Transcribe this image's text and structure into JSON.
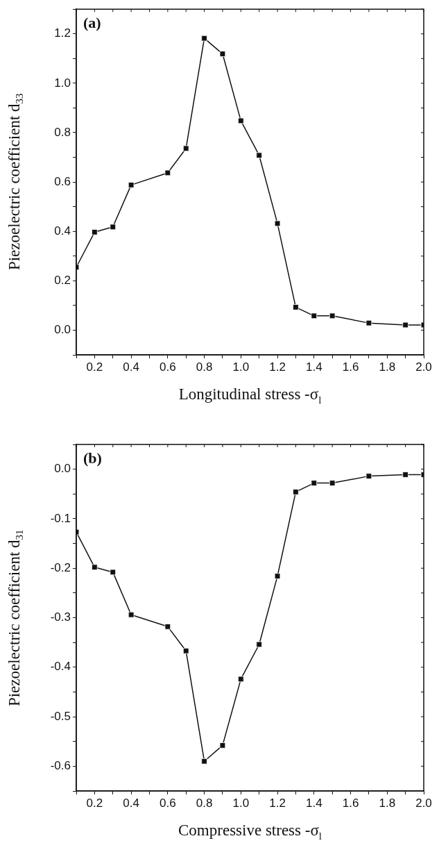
{
  "chart_data": [
    {
      "type": "line",
      "annotations": [
        "(a)"
      ],
      "xlabel": "Longitudinal stress -σ$_{l}$",
      "ylabel": "Piezoelectric coefficient d$_{33}$",
      "marker": "square",
      "line_style": "solid",
      "grid": false,
      "legend": false,
      "x": [
        0.1,
        0.2,
        0.3,
        0.4,
        0.6,
        0.7,
        0.8,
        0.9,
        1.0,
        1.1,
        1.2,
        1.3,
        1.4,
        1.5,
        1.7,
        1.9,
        2.0
      ],
      "series": [
        {
          "color": "#111111",
          "values": [
            0.255,
            0.397,
            0.418,
            0.588,
            0.637,
            0.736,
            1.182,
            1.119,
            0.848,
            0.708,
            0.432,
            0.093,
            0.058,
            0.058,
            0.029,
            0.021,
            0.021
          ]
        }
      ],
      "xlim": [
        0.1,
        2.0
      ],
      "xticks": [
        {
          "value": 0.1,
          "label": null
        },
        0.2,
        {
          "value": 0.3,
          "label": null
        },
        0.4,
        {
          "value": 0.5,
          "label": null
        },
        0.6,
        {
          "value": 0.7,
          "label": null
        },
        0.8,
        {
          "value": 0.9,
          "label": null
        },
        {
          "value": 1.0,
          "label": "1.0"
        },
        {
          "value": 1.1,
          "label": null
        },
        1.2,
        {
          "value": 1.3,
          "label": null
        },
        1.4,
        {
          "value": 1.5,
          "label": null
        },
        1.6,
        {
          "value": 1.7,
          "label": null
        },
        1.8,
        {
          "value": 1.9,
          "label": null
        },
        {
          "value": 2.0,
          "label": "2.0"
        }
      ],
      "ylim": [
        -0.1,
        1.3
      ],
      "yticks": [
        {
          "value": -0.1,
          "label": null
        },
        {
          "value": 0.0,
          "label": "0.0"
        },
        {
          "value": 0.1,
          "label": null
        },
        0.2,
        {
          "value": 0.3,
          "label": null
        },
        0.4,
        {
          "value": 0.5,
          "label": null
        },
        0.6,
        {
          "value": 0.7,
          "label": null
        },
        0.8,
        {
          "value": 0.9,
          "label": null
        },
        {
          "value": 1.0,
          "label": "1.0"
        },
        {
          "value": 1.1,
          "label": null
        },
        1.2,
        {
          "value": 1.3,
          "label": null
        }
      ]
    },
    {
      "type": "line",
      "annotations": [
        "(b)"
      ],
      "xlabel": "Compressive stress -σ$_{l}$",
      "ylabel": "Piezoelectric coefficient d$_{31}$",
      "marker": "square",
      "line_style": "solid",
      "grid": false,
      "legend": false,
      "x": [
        0.1,
        0.2,
        0.3,
        0.4,
        0.6,
        0.7,
        0.8,
        0.9,
        1.0,
        1.1,
        1.2,
        1.3,
        1.4,
        1.5,
        1.7,
        1.9,
        2.0
      ],
      "series": [
        {
          "color": "#111111",
          "values": [
            -0.127,
            -0.198,
            -0.208,
            -0.294,
            -0.318,
            -0.367,
            -0.59,
            -0.558,
            -0.424,
            -0.354,
            -0.216,
            -0.046,
            -0.028,
            -0.028,
            -0.014,
            -0.011,
            -0.011
          ]
        }
      ],
      "xlim": [
        0.1,
        2.0
      ],
      "xticks": [
        {
          "value": 0.1,
          "label": null
        },
        0.2,
        {
          "value": 0.3,
          "label": null
        },
        0.4,
        {
          "value": 0.5,
          "label": null
        },
        0.6,
        {
          "value": 0.7,
          "label": null
        },
        0.8,
        {
          "value": 0.9,
          "label": null
        },
        {
          "value": 1.0,
          "label": "1.0"
        },
        {
          "value": 1.1,
          "label": null
        },
        1.2,
        {
          "value": 1.3,
          "label": null
        },
        1.4,
        {
          "value": 1.5,
          "label": null
        },
        1.6,
        {
          "value": 1.7,
          "label": null
        },
        1.8,
        {
          "value": 1.9,
          "label": null
        },
        {
          "value": 2.0,
          "label": "2.0"
        }
      ],
      "ylim": [
        -0.65,
        0.05
      ],
      "yticks": [
        {
          "value": -0.65,
          "label": null
        },
        {
          "value": -0.6,
          "label": "-0.6"
        },
        {
          "value": -0.55,
          "label": null
        },
        {
          "value": -0.5,
          "label": "-0.5"
        },
        {
          "value": -0.45,
          "label": null
        },
        {
          "value": -0.4,
          "label": "-0.4"
        },
        {
          "value": -0.35,
          "label": null
        },
        {
          "value": -0.3,
          "label": "-0.3"
        },
        {
          "value": -0.25,
          "label": null
        },
        {
          "value": -0.2,
          "label": "-0.2"
        },
        {
          "value": -0.15,
          "label": null
        },
        {
          "value": -0.1,
          "label": "-0.1"
        },
        {
          "value": -0.05,
          "label": null
        },
        {
          "value": 0.0,
          "label": "0.0"
        },
        {
          "value": 0.05,
          "label": null
        }
      ]
    }
  ]
}
